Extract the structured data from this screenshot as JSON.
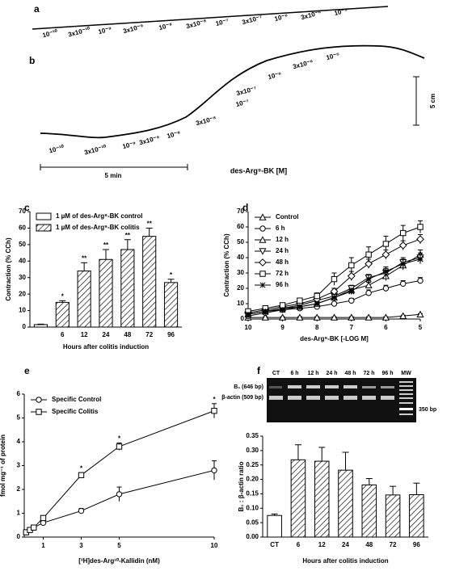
{
  "panel_labels": [
    "a",
    "b",
    "c",
    "d",
    "e",
    "f"
  ],
  "trace_a": {
    "labels": [
      "10⁻¹⁰",
      "3x10⁻¹⁰",
      "10⁻⁹",
      "3x10⁻⁹",
      "10⁻⁸",
      "3x10⁻⁸",
      "10⁻⁷",
      "3x10⁻⁷",
      "10⁻⁶",
      "3x10⁻⁶",
      "10⁻⁵"
    ]
  },
  "trace_b": {
    "labels": [
      "10⁻¹⁰",
      "3x10⁻¹⁰",
      "10⁻⁹",
      "3x10⁻⁹",
      "10⁻⁸",
      "3x10⁻⁸",
      "10⁻⁷",
      "3x10⁻⁷",
      "10⁻⁶",
      "3x10⁻⁶",
      "10⁻⁵"
    ],
    "vertical_scale": "5 cm",
    "time_scale": "5 min",
    "axis_label": "des-Arg⁹-BK [M]"
  },
  "gel": {
    "lane_labels": [
      "CT",
      "6 h",
      "12 h",
      "24 h",
      "48 h",
      "72 h",
      "96 h",
      "MW"
    ],
    "band_labels": [
      "B₁ (646 bp)",
      "β-actin (509 bp)"
    ],
    "marker_label": "350 bp"
  },
  "chart_data": [
    {
      "type": "bar",
      "categories": [
        null,
        "6",
        "12",
        "24",
        "48",
        "72",
        "96"
      ],
      "xlabel": "Hours after colitis induction",
      "ylabel": "Contraction (% CCh)",
      "ylim": [
        0,
        70
      ],
      "yticks": [
        0,
        10,
        20,
        30,
        40,
        50,
        60,
        70
      ],
      "legend": "upper left",
      "series": [
        {
          "name": "1 µM of des-Arg⁹-BK control",
          "color": "#ffffff",
          "hatch": false,
          "values": [
            1.5,
            null,
            null,
            null,
            null,
            null,
            null
          ],
          "errors": [
            0.3,
            null,
            null,
            null,
            null,
            null,
            null
          ]
        },
        {
          "name": "1 µM of des-Arg⁹-BK colitis",
          "color": "#ffffff",
          "hatch": true,
          "values": [
            null,
            15,
            34,
            41,
            47,
            55,
            27
          ],
          "errors": [
            null,
            1,
            5,
            6,
            6,
            5,
            2
          ],
          "significance": [
            null,
            "*",
            "**",
            "**",
            "**",
            "**",
            "*"
          ]
        }
      ]
    },
    {
      "type": "line",
      "x": [
        10,
        9.5,
        9,
        8.5,
        8,
        7.5,
        7,
        6.5,
        6,
        5.5,
        5
      ],
      "xlim": [
        10,
        5
      ],
      "xticks": [
        10,
        9,
        8,
        7,
        6,
        5
      ],
      "ylim": [
        0,
        70
      ],
      "yticks": [
        0,
        10,
        20,
        30,
        40,
        50,
        60,
        70
      ],
      "xlabel": "des-Arg⁹-BK [-LOG M]",
      "ylabel": "Contraction (% CCh)",
      "legend": "upper left",
      "series": [
        {
          "name": "Control",
          "marker": "triangle",
          "color": "#000000",
          "values": [
            1,
            1,
            1,
            1,
            1,
            1,
            1,
            1,
            1,
            2,
            3
          ],
          "errors": [
            0.5,
            0.5,
            0.5,
            0.5,
            0.5,
            0.5,
            0.5,
            0.5,
            0.5,
            0.5,
            0.5
          ]
        },
        {
          "name": "6 h",
          "marker": "circle",
          "color": "#000000",
          "values": [
            2,
            4,
            6,
            7,
            8,
            10,
            12,
            17,
            20,
            23,
            25
          ],
          "errors": [
            0.5,
            0.5,
            1,
            1,
            1,
            1,
            1.5,
            2,
            2,
            2,
            2
          ]
        },
        {
          "name": "12 h",
          "marker": "triangle",
          "color": "#000000",
          "values": [
            3,
            5,
            7,
            8,
            10,
            14,
            19,
            22,
            28,
            35,
            42
          ],
          "errors": [
            1,
            1,
            1,
            1,
            1,
            2,
            2,
            2,
            3,
            3,
            3
          ]
        },
        {
          "name": "24 h",
          "marker": "triangle-down",
          "color": "#000000",
          "values": [
            3,
            5,
            7,
            9,
            12,
            15,
            20,
            27,
            30,
            37,
            40
          ],
          "errors": [
            1,
            1,
            1,
            1,
            1,
            2,
            2,
            2,
            3,
            3,
            3
          ]
        },
        {
          "name": "48 h",
          "marker": "diamond",
          "color": "#000000",
          "values": [
            4,
            6,
            8,
            10,
            13,
            18,
            28,
            36,
            42,
            48,
            52
          ],
          "errors": [
            1,
            1,
            1,
            1,
            2,
            2,
            3,
            3,
            3,
            3,
            3
          ]
        },
        {
          "name": "72 h",
          "marker": "square",
          "color": "#000000",
          "values": [
            5,
            7,
            9,
            12,
            15,
            26,
            35,
            42,
            49,
            56,
            60
          ],
          "errors": [
            1,
            1,
            1,
            1,
            2,
            4,
            5,
            5,
            5,
            5,
            4
          ]
        },
        {
          "name": "96 h",
          "marker": "star",
          "color": "#000000",
          "values": [
            3,
            5,
            6,
            8,
            10,
            14,
            18,
            26,
            31,
            36,
            39
          ],
          "errors": [
            1,
            1,
            1,
            1,
            1,
            2,
            2,
            3,
            3,
            3,
            3
          ]
        }
      ]
    },
    {
      "type": "line",
      "x": [
        0.1,
        0.3,
        0.5,
        1,
        3,
        5,
        10
      ],
      "xlim": [
        0,
        10
      ],
      "xticks": [
        1,
        3,
        5,
        10
      ],
      "ylim": [
        0,
        6
      ],
      "yticks": [
        0,
        1,
        2,
        3,
        4,
        5,
        6
      ],
      "xlabel": "[³H]des-Arg¹⁰-Kallidin (nM)",
      "ylabel": "fmol mg⁻¹ of protein",
      "legend": "upper left",
      "series": [
        {
          "name": "Specific Control",
          "marker": "circle",
          "color": "#000000",
          "values": [
            0.2,
            0.3,
            0.4,
            0.6,
            1.1,
            1.8,
            2.8
          ],
          "errors": [
            0.1,
            0.1,
            0.1,
            0.1,
            0.1,
            0.3,
            0.4
          ]
        },
        {
          "name": "Specific Colitis",
          "marker": "square",
          "color": "#000000",
          "values": [
            0.2,
            0.3,
            0.4,
            0.8,
            2.6,
            3.8,
            5.3
          ],
          "errors": [
            0.1,
            0.1,
            0.1,
            0.1,
            0.1,
            0.15,
            0.3
          ],
          "significance": [
            null,
            null,
            null,
            null,
            "*",
            "*",
            "*"
          ]
        }
      ]
    },
    {
      "type": "bar",
      "categories": [
        "CT",
        "6",
        "12",
        "24",
        "48",
        "72",
        "96"
      ],
      "xlabel": "Hours after colitis induction",
      "ylabel": "B₁ : β-actin ratio",
      "ylim": [
        0,
        0.35
      ],
      "yticks": [
        {
          "value": 0,
          "label": "0.00"
        },
        {
          "value": 0.05,
          "label": "0.05"
        },
        {
          "value": 0.1,
          "label": "0.10"
        },
        {
          "value": 0.15,
          "label": "0.15"
        },
        {
          "value": 0.2,
          "label": "0.20"
        },
        {
          "value": 0.25,
          "label": "0.25"
        },
        {
          "value": 0.3,
          "label": "0.30"
        },
        {
          "value": 0.35,
          "label": "0.35"
        }
      ],
      "color": "#ffffff",
      "hatch": [
        false,
        true,
        true,
        true,
        true,
        true,
        true
      ],
      "values": [
        0.075,
        0.268,
        0.263,
        0.232,
        0.181,
        0.146,
        0.147
      ],
      "errors": [
        0.005,
        0.052,
        0.048,
        0.062,
        0.022,
        0.03,
        0.04
      ]
    }
  ]
}
